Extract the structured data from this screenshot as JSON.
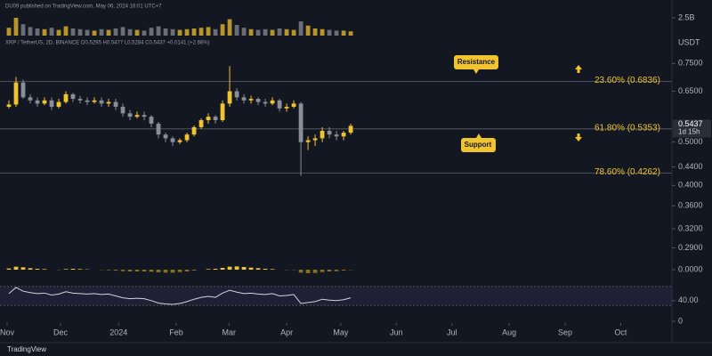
{
  "header": {
    "publisher": "DU09 published on TradingView.com, May 06, 2024 16:01 UTC+7",
    "symbol": "XRP / TetherUS, 2D, BINANCE  O0.5295  H0.5477  L0.5284  C0.5437  +0.0141 (+2.66%)",
    "currency": "USDT",
    "footer": "TradingView"
  },
  "chart_data": {
    "type": "candlestick",
    "categories": [
      null,
      null,
      null,
      null,
      null,
      null,
      null,
      null,
      null,
      null,
      null,
      null,
      null,
      null,
      null,
      null,
      null,
      null,
      null,
      null,
      null,
      null,
      null,
      null,
      null,
      null,
      null,
      null,
      null,
      null,
      null,
      null,
      null,
      null,
      null,
      null,
      null,
      null,
      null,
      null,
      null,
      null,
      null,
      null,
      null,
      null,
      null,
      null,
      null
    ],
    "opens": [
      0.6,
      0.607,
      0.68,
      0.63,
      0.62,
      0.61,
      0.62,
      0.6,
      0.615,
      0.64,
      0.625,
      0.62,
      0.615,
      0.62,
      0.61,
      0.615,
      0.6,
      0.58,
      0.57,
      0.575,
      0.57,
      0.55,
      0.52,
      0.51,
      0.5,
      0.505,
      0.52,
      0.54,
      0.56,
      0.57,
      0.56,
      0.61,
      0.65,
      0.63,
      0.62,
      0.625,
      0.615,
      0.61,
      0.62,
      0.595,
      0.6,
      0.61,
      0.5,
      0.505,
      0.51,
      0.53,
      0.52,
      0.515,
      0.525
    ],
    "highs": [
      0.62,
      0.7,
      0.69,
      0.64,
      0.63,
      0.63,
      0.63,
      0.625,
      0.65,
      0.645,
      0.635,
      0.63,
      0.63,
      0.63,
      0.625,
      0.625,
      0.61,
      0.59,
      0.585,
      0.585,
      0.575,
      0.555,
      0.525,
      0.515,
      0.51,
      0.525,
      0.545,
      0.565,
      0.58,
      0.575,
      0.62,
      0.74,
      0.66,
      0.64,
      0.635,
      0.63,
      0.625,
      0.63,
      0.625,
      0.61,
      0.62,
      0.615,
      0.515,
      0.52,
      0.54,
      0.54,
      0.53,
      0.53,
      0.55
    ],
    "lows": [
      0.595,
      0.6,
      0.625,
      0.61,
      0.6,
      0.605,
      0.59,
      0.595,
      0.61,
      0.615,
      0.61,
      0.605,
      0.61,
      0.6,
      0.6,
      0.59,
      0.57,
      0.56,
      0.565,
      0.56,
      0.54,
      0.51,
      0.5,
      0.49,
      0.495,
      0.5,
      0.515,
      0.535,
      0.55,
      0.55,
      0.555,
      0.6,
      0.62,
      0.61,
      0.61,
      0.605,
      0.6,
      0.605,
      0.585,
      0.585,
      0.595,
      0.42,
      0.48,
      0.49,
      0.5,
      0.51,
      0.505,
      0.505,
      0.52
    ],
    "closes": [
      0.607,
      0.68,
      0.63,
      0.62,
      0.61,
      0.62,
      0.6,
      0.615,
      0.64,
      0.625,
      0.62,
      0.615,
      0.62,
      0.61,
      0.615,
      0.6,
      0.58,
      0.57,
      0.575,
      0.57,
      0.55,
      0.52,
      0.51,
      0.5,
      0.505,
      0.52,
      0.54,
      0.56,
      0.57,
      0.56,
      0.61,
      0.65,
      0.63,
      0.62,
      0.625,
      0.615,
      0.61,
      0.62,
      0.595,
      0.6,
      0.61,
      0.5,
      0.505,
      0.51,
      0.53,
      0.52,
      0.515,
      0.525,
      0.5437
    ],
    "up_color": "#f0c330",
    "down_color": "#8a8e99",
    "log_scale": true,
    "ylim": [
      0.275,
      0.79
    ],
    "yticks": [
      {
        "value": 0.75,
        "label": "0.7500"
      },
      {
        "value": 0.65,
        "label": "0.6500"
      },
      {
        "value": 0.5,
        "label": "0.5000"
      },
      {
        "value": 0.44,
        "label": "0.4400"
      },
      {
        "value": 0.4,
        "label": "0.4000"
      },
      {
        "value": 0.36,
        "label": "0.3600"
      },
      {
        "value": 0.32,
        "label": "0.3200"
      },
      {
        "value": 0.29,
        "label": "0.2900"
      }
    ],
    "xlim": [
      -1.25,
      93.1
    ],
    "xticks": [
      {
        "value": -0.25,
        "label": "Nov"
      },
      {
        "value": 7.25,
        "label": "Dec"
      },
      {
        "value": 15.4,
        "label": "2024"
      },
      {
        "value": 23.5,
        "label": "Feb"
      },
      {
        "value": 30.9,
        "label": "Mar"
      },
      {
        "value": 39,
        "label": "Apr"
      },
      {
        "value": 46.6,
        "label": "May"
      },
      {
        "value": 54.4,
        "label": "Jun"
      },
      {
        "value": 62.2,
        "label": "Jul"
      },
      {
        "value": 70.25,
        "label": "Aug"
      },
      {
        "value": 78.1,
        "label": "Sep"
      },
      {
        "value": 85.9,
        "label": "Oct"
      }
    ],
    "last_price": 0.5437,
    "countdown": "1d 15h",
    "fib_levels": [
      {
        "value": 0.6836,
        "label": "23.60% (0.6836)"
      },
      {
        "value": 0.5353,
        "label": "61.80% (0.5353)"
      },
      {
        "value": 0.4262,
        "label": "78.60% (0.4262)"
      }
    ],
    "annotations": [
      "Resistance",
      "Support"
    ],
    "volume": {
      "color": "#b8952a",
      "down_color": "#6b6e78",
      "values": [
        1100000000.0,
        2500000000.0,
        1600000000.0,
        1200000000.0,
        1000000000.0,
        900000000.0,
        1100000000.0,
        800000000.0,
        1300000000.0,
        1000000000.0,
        900000000.0,
        800000000.0,
        700000000.0,
        900000000.0,
        800000000.0,
        1000000000.0,
        1200000000.0,
        900000000.0,
        800000000.0,
        700000000.0,
        1100000000.0,
        1300000000.0,
        1000000000.0,
        900000000.0,
        800000000.0,
        900000000.0,
        1000000000.0,
        1100000000.0,
        1200000000.0,
        900000000.0,
        1600000000.0,
        2300000000.0,
        1500000000.0,
        1100000000.0,
        900000000.0,
        800000000.0,
        900000000.0,
        800000000.0,
        1000000000.0,
        900000000.0,
        800000000.0,
        2000000000.0,
        1400000000.0,
        1000000000.0,
        900000000.0,
        800000000.0,
        700000000.0,
        700000000.0,
        600000000.0
      ],
      "ylim": [
        0,
        3750000000.0
      ],
      "yticks": [
        {
          "value": 2500000000.0,
          "label": "2.5B"
        }
      ]
    },
    "macd": {
      "color": "#f0c330",
      "down_color": "#8a6d1e",
      "values": [
        0.004,
        0.01,
        0.008,
        0.005,
        0.003,
        0.002,
        0.0,
        -0.001,
        0.002,
        0.003,
        0.002,
        0.001,
        0.0,
        -0.001,
        -0.002,
        -0.003,
        -0.005,
        -0.006,
        -0.006,
        -0.006,
        -0.007,
        -0.009,
        -0.01,
        -0.01,
        -0.008,
        -0.006,
        -0.003,
        0.0,
        0.002,
        0.003,
        0.006,
        0.01,
        0.011,
        0.009,
        0.007,
        0.005,
        0.003,
        0.002,
        0.0,
        -0.001,
        -0.001,
        -0.01,
        -0.012,
        -0.011,
        -0.008,
        -0.006,
        -0.005,
        -0.003,
        -0.001
      ],
      "ylim": [
        -0.03,
        0.03
      ],
      "yticks": [
        {
          "value": 0,
          "label": "0.0000"
        }
      ]
    },
    "rsi": {
      "color": "#d1d4dc",
      "values": [
        55,
        68,
        60,
        57,
        55,
        56,
        52,
        54,
        59,
        56,
        55,
        54,
        55,
        53,
        54,
        50,
        46,
        44,
        45,
        44,
        40,
        35,
        33,
        32,
        34,
        38,
        43,
        47,
        49,
        47,
        56,
        62,
        58,
        55,
        56,
        54,
        53,
        55,
        50,
        51,
        53,
        34,
        36,
        38,
        43,
        41,
        40,
        42,
        46
      ],
      "bands": [
        30,
        70
      ],
      "ylim": [
        17,
        83
      ],
      "yticks": [
        {
          "value": 40,
          "label": "40.00"
        }
      ]
    },
    "bottom_panel": {
      "ylim": [
        0,
        1
      ],
      "yticks": [
        0
      ]
    }
  }
}
